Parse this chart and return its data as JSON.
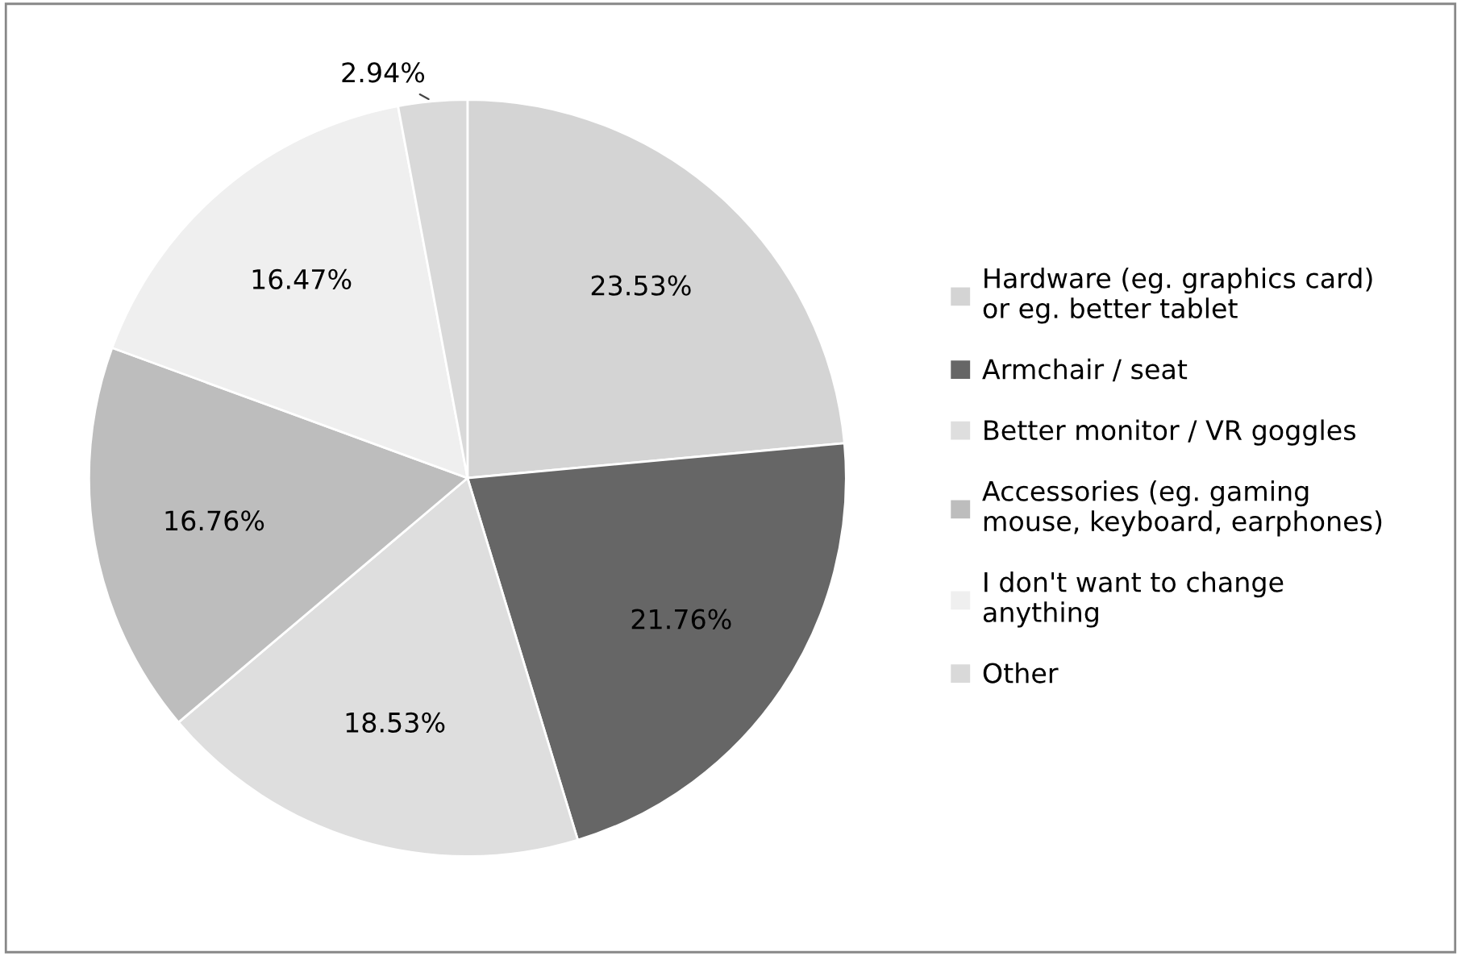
{
  "chart_data": {
    "type": "pie",
    "categories": [
      "Hardware (eg. graphics card)\nor eg. better tablet",
      "Armchair / seat",
      "Better monitor / VR goggles",
      "Accessories (eg. gaming\nmouse, keyboard, earphones)",
      "I don't want to change\nanything",
      "Other"
    ],
    "values": [
      23.53,
      21.76,
      18.53,
      16.76,
      16.47,
      2.94
    ],
    "colors": [
      "#d4d4d4",
      "#666666",
      "#dedede",
      "#bdbdbd",
      "#efefef",
      "#d9d9d9"
    ],
    "value_labels": [
      "23.53%",
      "21.76%",
      "18.53%",
      "16.76%",
      "16.47%",
      "2.94%"
    ],
    "legend": "right"
  }
}
